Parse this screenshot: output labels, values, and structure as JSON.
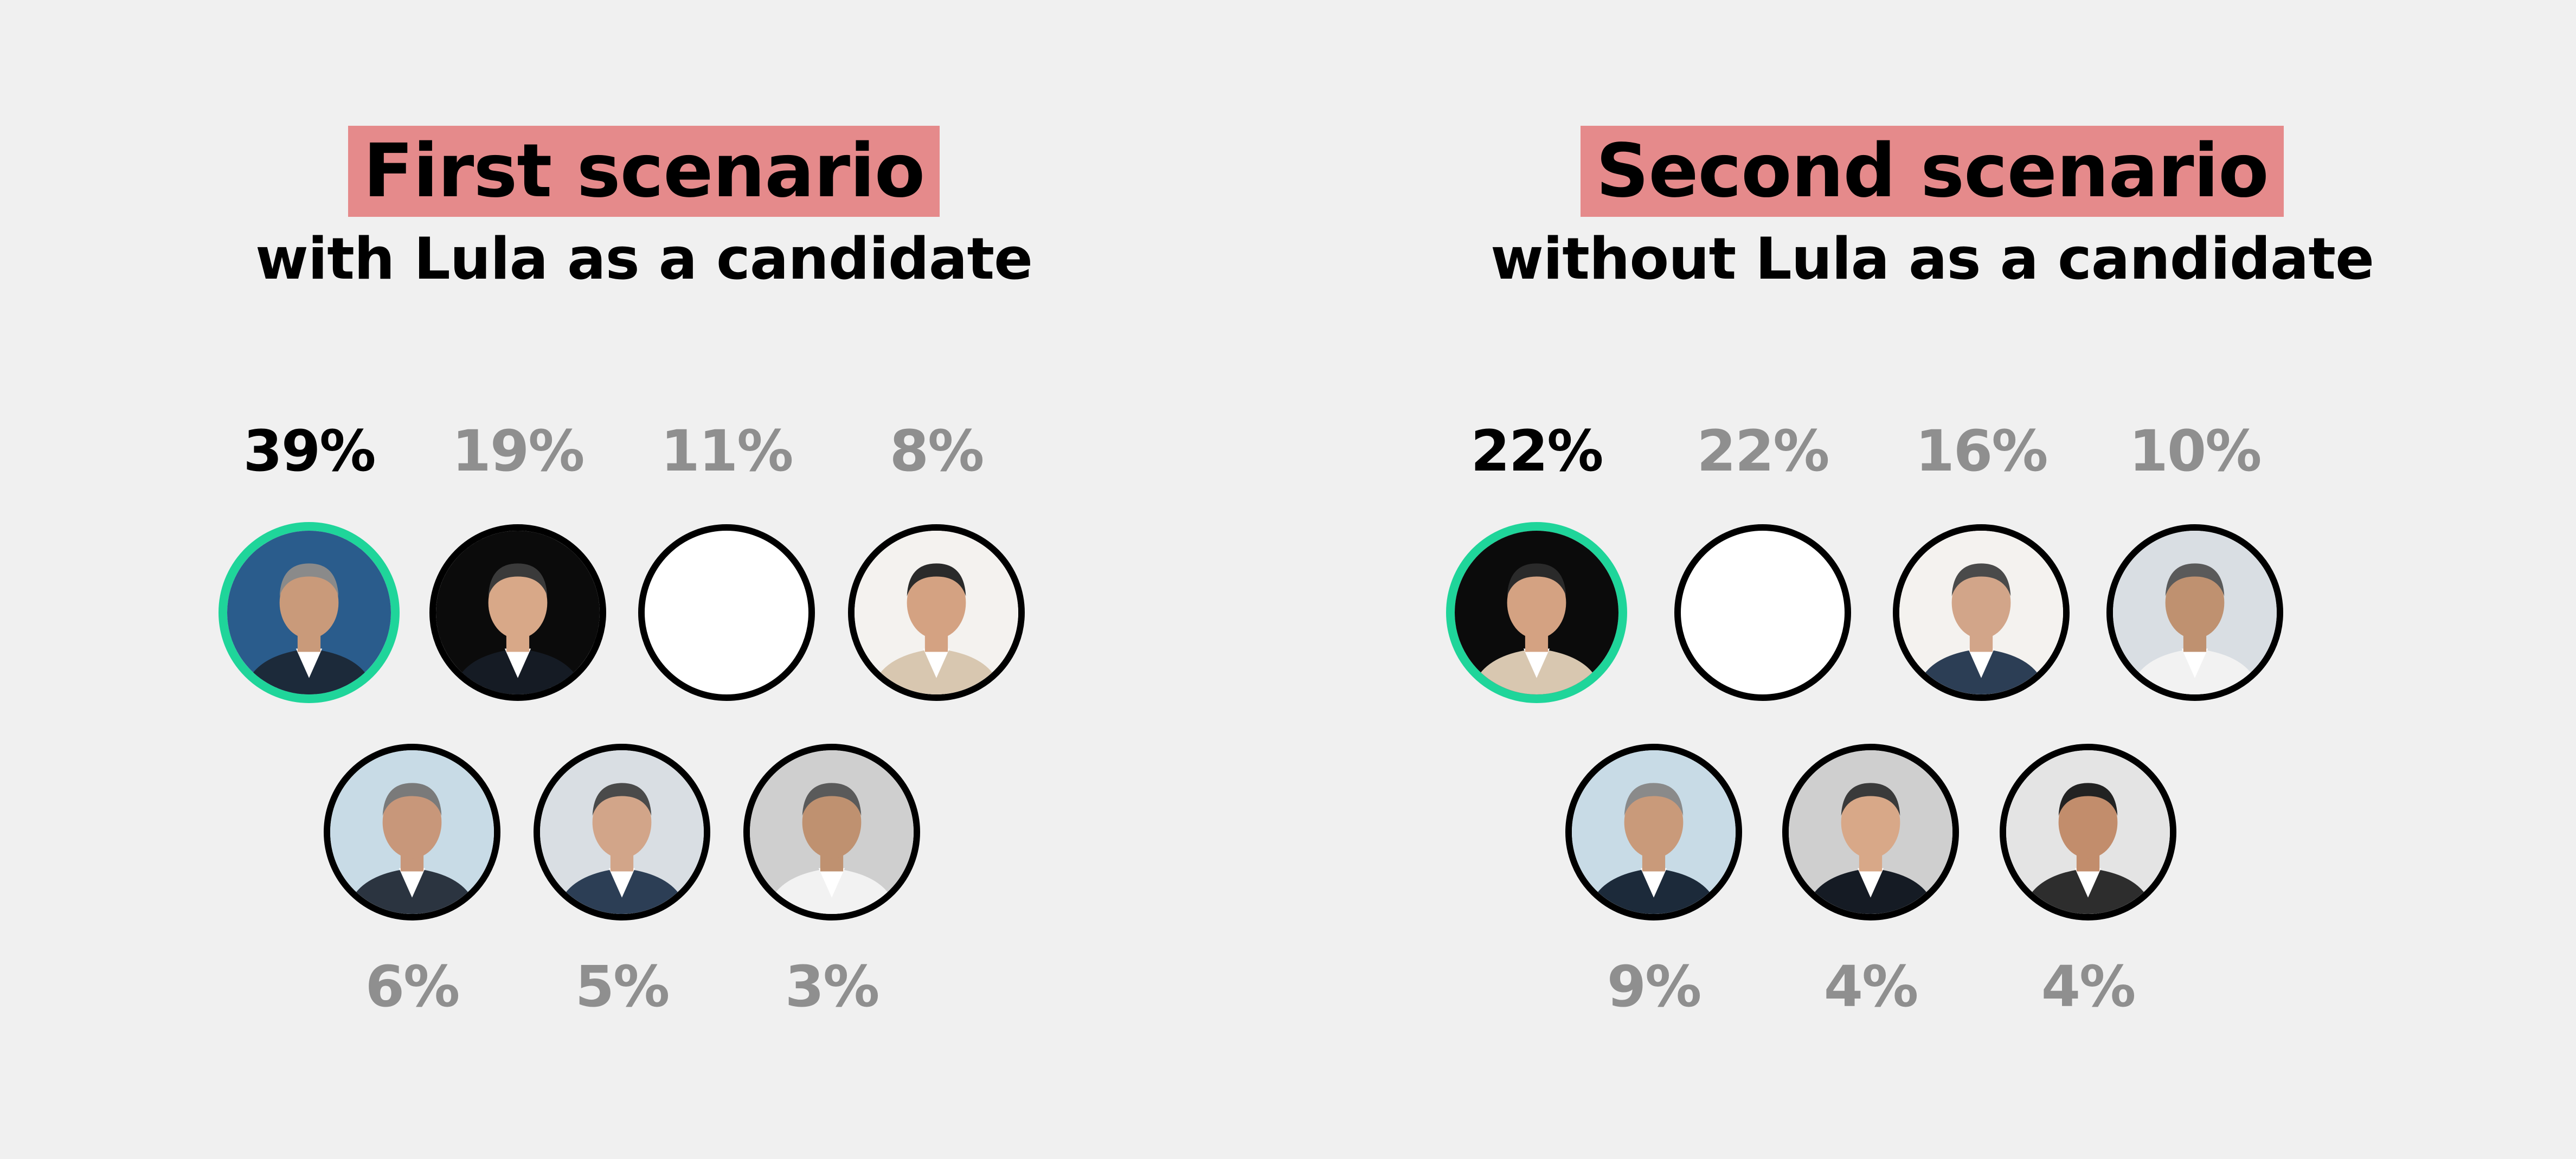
{
  "chart_data": [
    {
      "type": "bar",
      "title": "First scenario",
      "subtitle": "with Lula as a candidate",
      "candidates": [
        {
          "value_label": "39%",
          "value": 39,
          "leader": true,
          "bg": "#2a5c8c",
          "photo": "photo"
        },
        {
          "value_label": "19%",
          "value": 19,
          "leader": false,
          "bg": "#0b0b0b",
          "photo": "photo"
        },
        {
          "value_label": "11%",
          "value": 11,
          "leader": false,
          "bg": "#ffffff",
          "photo": "empty"
        },
        {
          "value_label": "8%",
          "value": 8,
          "leader": false,
          "bg": "#f4f2ef",
          "photo": "photo"
        },
        {
          "value_label": "6%",
          "value": 6,
          "leader": false,
          "bg": "#c8dbe6",
          "photo": "photo"
        },
        {
          "value_label": "5%",
          "value": 5,
          "leader": false,
          "bg": "#d9dee3",
          "photo": "photo"
        },
        {
          "value_label": "3%",
          "value": 3,
          "leader": false,
          "bg": "#cfcfcf",
          "photo": "photo"
        }
      ]
    },
    {
      "type": "bar",
      "title": "Second scenario",
      "subtitle": "without Lula as a candidate",
      "candidates": [
        {
          "value_label": "22%",
          "value": 22,
          "leader": true,
          "bg": "#0b0b0b",
          "photo": "photo"
        },
        {
          "value_label": "22%",
          "value": 22,
          "leader": false,
          "bg": "#ffffff",
          "photo": "empty"
        },
        {
          "value_label": "16%",
          "value": 16,
          "leader": false,
          "bg": "#f4f2ef",
          "photo": "photo"
        },
        {
          "value_label": "10%",
          "value": 10,
          "leader": false,
          "bg": "#d9dee3",
          "photo": "photo"
        },
        {
          "value_label": "9%",
          "value": 9,
          "leader": false,
          "bg": "#c8dbe6",
          "photo": "photo"
        },
        {
          "value_label": "4%",
          "value": 4,
          "leader": false,
          "bg": "#cfcfcf",
          "photo": "photo"
        },
        {
          "value_label": "4%",
          "value": 4,
          "leader": false,
          "bg": "#e4e4e4",
          "photo": "photo"
        }
      ]
    }
  ],
  "colors": {
    "background": "#f0f0f0",
    "title_highlight": "#e58a8b",
    "leader_ring": "#1fd59a",
    "leader_text": "#000000",
    "other_text": "#8f8f8f"
  }
}
